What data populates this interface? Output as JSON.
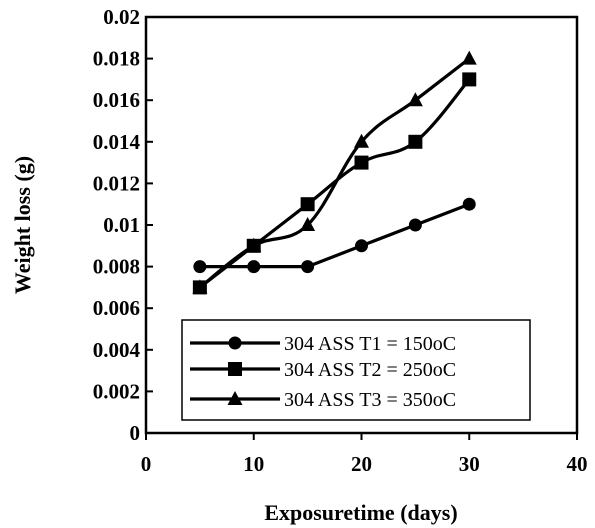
{
  "chart_data": {
    "type": "line",
    "title": "",
    "xlabel": "Exposuretime (days)",
    "ylabel": "Weight loss (g)",
    "xlim": [
      0,
      40
    ],
    "ylim": [
      0,
      0.02
    ],
    "x_ticks": [
      "0",
      "10",
      "20",
      "30",
      "40"
    ],
    "y_ticks": [
      "0",
      "0.002",
      "0.004",
      "0.006",
      "0.008",
      "0.01",
      "0.012",
      "0.014",
      "0.016",
      "0.018",
      "0.02"
    ],
    "grid": false,
    "legend_position": "bottom-right",
    "x": [
      5,
      10,
      15,
      20,
      25,
      30
    ],
    "series": [
      {
        "name": "304 ASS T1 = 150oC",
        "marker": "circle",
        "color": "#000000",
        "values": [
          0.008,
          0.008,
          0.008,
          0.009,
          0.01,
          0.011
        ]
      },
      {
        "name": "304 ASS T2 = 250oC",
        "marker": "square",
        "color": "#000000",
        "values": [
          0.007,
          0.009,
          0.011,
          0.013,
          0.014,
          0.017
        ]
      },
      {
        "name": "304 ASS T3 = 350oC",
        "marker": "triangle",
        "color": "#000000",
        "values": [
          0.007,
          0.009,
          0.01,
          0.014,
          0.016,
          0.018
        ]
      }
    ]
  }
}
